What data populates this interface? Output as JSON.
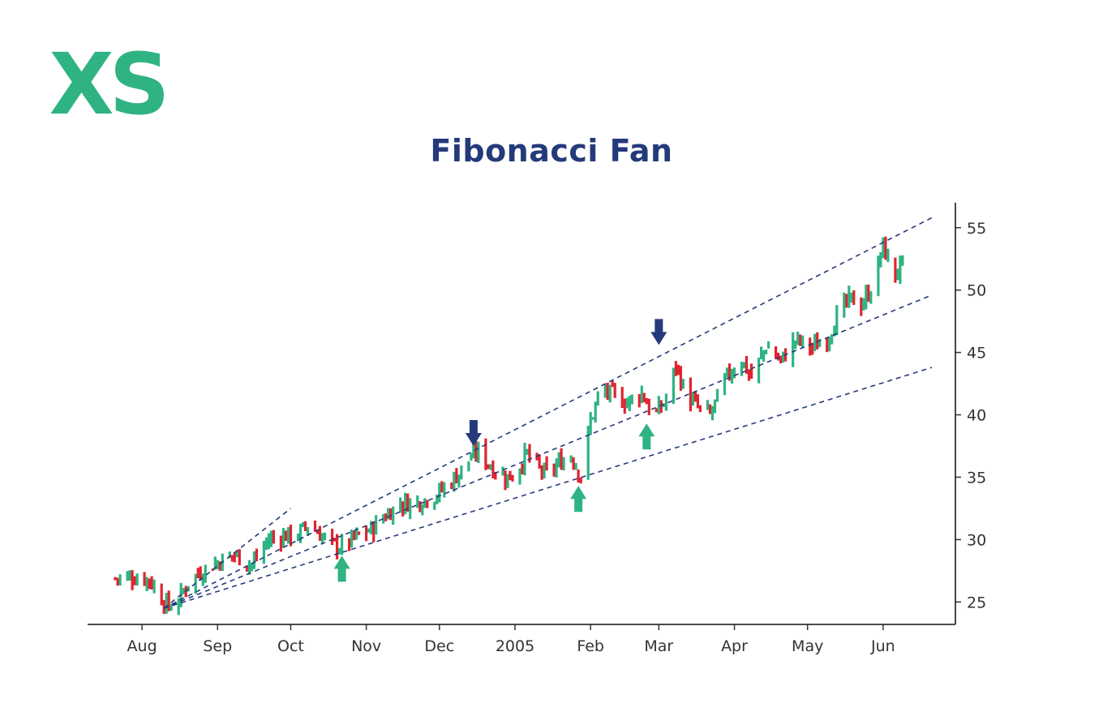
{
  "title": "Fibonacci Fan",
  "brand": {
    "logo_text": "XS",
    "color": "#2fb383"
  },
  "colors": {
    "up": "#2fb383",
    "down": "#e0242f",
    "fan": "#253a7a",
    "axis": "#333333",
    "arrow_resistance": "#253a7a",
    "arrow_support": "#2fb383"
  },
  "chart_data": {
    "type": "ohlc",
    "title": "Fibonacci Fan",
    "xlabel": "",
    "ylabel": "",
    "y_axis_position": "right",
    "ylim": [
      23.2,
      57
    ],
    "yticks": [
      25,
      30,
      35,
      40,
      45,
      50,
      55
    ],
    "x_tick_labels": [
      "Aug",
      "Sep",
      "Oct",
      "Nov",
      "Dec",
      "2005",
      "Feb",
      "Mar",
      "Apr",
      "May",
      "Jun"
    ],
    "x_tick_dates": [
      "2004-08-01",
      "2004-09-01",
      "2004-10-01",
      "2004-11-01",
      "2004-12-01",
      "2005-01-01",
      "2005-02-01",
      "2005-03-01",
      "2005-04-01",
      "2005-05-01",
      "2005-06-01"
    ],
    "xlim": [
      "2004-07-13",
      "2005-06-24"
    ],
    "grid": false,
    "legend": "none",
    "price_path": [
      [
        "2004-07-21",
        26.9
      ],
      [
        "2004-07-30",
        27.0
      ],
      [
        "2004-08-04",
        26.8
      ],
      [
        "2004-08-09",
        25.3
      ],
      [
        "2004-08-12",
        24.6
      ],
      [
        "2004-08-16",
        25.1
      ],
      [
        "2004-08-20",
        26.6
      ],
      [
        "2004-08-25",
        27.4
      ],
      [
        "2004-09-01",
        28.2
      ],
      [
        "2004-09-08",
        28.8
      ],
      [
        "2004-09-15",
        28.0
      ],
      [
        "2004-09-22",
        30.0
      ],
      [
        "2004-09-28",
        30.3
      ],
      [
        "2004-10-04",
        30.4
      ],
      [
        "2004-10-08",
        31.2
      ],
      [
        "2004-10-12",
        30.6
      ],
      [
        "2004-10-18",
        29.6
      ],
      [
        "2004-10-22",
        29.4
      ],
      [
        "2004-10-27",
        30.1
      ],
      [
        "2004-11-03",
        30.8
      ],
      [
        "2004-11-08",
        31.8
      ],
      [
        "2004-11-15",
        32.9
      ],
      [
        "2004-11-22",
        33.0
      ],
      [
        "2004-11-30",
        33.6
      ],
      [
        "2004-12-08",
        35.1
      ],
      [
        "2004-12-14",
        36.6
      ],
      [
        "2004-12-17",
        37.1
      ],
      [
        "2004-12-22",
        35.9
      ],
      [
        "2004-12-28",
        35.0
      ],
      [
        "2004-12-31",
        35.1
      ],
      [
        "2005-01-06",
        36.9
      ],
      [
        "2005-01-10",
        35.8
      ],
      [
        "2005-01-14",
        35.2
      ],
      [
        "2005-01-20",
        36.3
      ],
      [
        "2005-01-24",
        36.8
      ],
      [
        "2005-01-28",
        35.1
      ],
      [
        "2005-02-01",
        39.5
      ],
      [
        "2005-02-05",
        42.0
      ],
      [
        "2005-02-10",
        41.6
      ],
      [
        "2005-02-16",
        41.0
      ],
      [
        "2005-02-22",
        41.8
      ],
      [
        "2005-02-27",
        39.8
      ],
      [
        "2005-03-04",
        41.2
      ],
      [
        "2005-03-08",
        44.0
      ],
      [
        "2005-03-12",
        41.6
      ],
      [
        "2005-03-18",
        40.4
      ],
      [
        "2005-03-22",
        40.0
      ],
      [
        "2005-03-29",
        43.1
      ],
      [
        "2005-04-04",
        44.4
      ],
      [
        "2005-04-08",
        43.0
      ],
      [
        "2005-04-14",
        45.5
      ],
      [
        "2005-04-20",
        44.3
      ],
      [
        "2005-04-26",
        46.0
      ],
      [
        "2005-05-03",
        45.4
      ],
      [
        "2005-05-09",
        46.1
      ],
      [
        "2005-05-14",
        48.3
      ],
      [
        "2005-05-19",
        49.3
      ],
      [
        "2005-05-23",
        48.8
      ],
      [
        "2005-05-28",
        50.4
      ],
      [
        "2005-06-01",
        53.6
      ],
      [
        "2005-06-05",
        51.0
      ],
      [
        "2005-06-09",
        52.1
      ]
    ],
    "fan_lines": [
      {
        "start": [
          "2004-08-10",
          24.5
        ],
        "end": [
          "2004-10-01",
          32.5
        ]
      },
      {
        "start": [
          "2004-08-10",
          24.5
        ],
        "end": [
          "2005-06-21",
          55.8
        ]
      },
      {
        "start": [
          "2004-08-10",
          24.5
        ],
        "end": [
          "2005-06-21",
          49.6
        ]
      },
      {
        "start": [
          "2004-08-10",
          24.5
        ],
        "end": [
          "2005-06-21",
          43.8
        ]
      }
    ],
    "annotations": [
      {
        "type": "arrow-down",
        "color": "resistance",
        "date": "2004-12-15",
        "value": 37.5
      },
      {
        "type": "arrow-down",
        "color": "resistance",
        "date": "2005-03-01",
        "value": 45.6
      },
      {
        "type": "arrow-up",
        "color": "support",
        "date": "2004-10-22",
        "value": 28.7
      },
      {
        "type": "arrow-up",
        "color": "support",
        "date": "2005-01-27",
        "value": 34.3
      },
      {
        "type": "arrow-up",
        "color": "support",
        "date": "2005-02-24",
        "value": 39.3
      }
    ]
  }
}
